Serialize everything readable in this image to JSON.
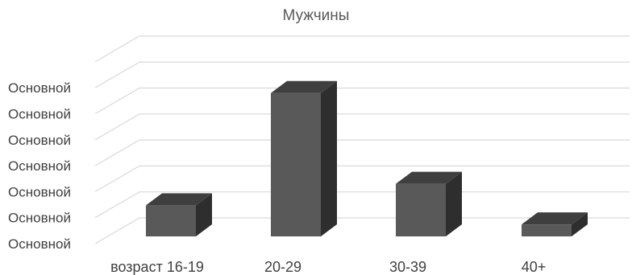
{
  "chart_data": {
    "type": "bar",
    "title": "Мужчины",
    "categories": [
      "возраст 16-19",
      "20-29",
      "30-39",
      "40+"
    ],
    "values": [
      1.3,
      6.0,
      2.2,
      0.5
    ],
    "ylim": [
      0,
      7
    ],
    "y_tick_labels": [
      "Основной",
      "Основной",
      "Основной",
      "Основной",
      "Основной",
      "Основной",
      "Основной"
    ],
    "grid": true,
    "style": "3d-column",
    "colors": {
      "front": "#595959",
      "top": "#3f3f3f",
      "side": "#2e2e2e",
      "grid": "#d9d9d9"
    }
  }
}
